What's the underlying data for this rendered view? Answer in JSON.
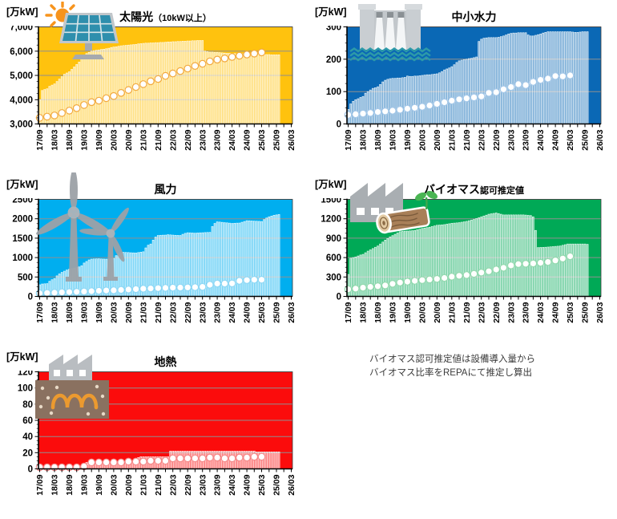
{
  "page": {
    "background": "#FFFFFF"
  },
  "style": {
    "grid_color": "#8F8F8F",
    "axis_color": "#000000",
    "bar_fill": "rgba(255,255,255,0.5)",
    "bar_stroke": "rgba(255,255,255,0.92)",
    "line_color": "rgba(255,255,255,0.85)",
    "marker_fill": "#FFFFFF"
  },
  "x_axis": {
    "labels": [
      "17/09",
      "18/03",
      "18/09",
      "19/03",
      "19/09",
      "20/03",
      "20/09",
      "21/03",
      "21/09",
      "22/03",
      "22/09",
      "23/03",
      "23/09",
      "24/03",
      "24/09",
      "25/03",
      "25/09",
      "26/03"
    ],
    "months_total": 102,
    "label_every_months": 6,
    "tick_every_months": 3
  },
  "charts": [
    {
      "id": "solar",
      "title": "太陽光",
      "title_suffix": "（10kW以上）",
      "unit": "[万kW]",
      "icon": "sun-solar-panel-icon",
      "colors": {
        "bg": "#FFC20E",
        "marker_rim": "#F2A93E"
      }
    },
    {
      "id": "hydro",
      "title": "中小水力",
      "title_suffix": "",
      "unit": "[万kW]",
      "icon": "dam-icon",
      "colors": {
        "bg": "#0A68B5",
        "marker_rim": "#A3C7E8"
      }
    },
    {
      "id": "wind",
      "title": "風力",
      "title_suffix": "",
      "unit": "[万kW]",
      "icon": "wind-turbines-icon",
      "colors": {
        "bg": "#00AEEF",
        "marker_rim": "#8FD8F5"
      }
    },
    {
      "id": "biomass",
      "title": "バイオマス",
      "title_suffix": "認可推定値",
      "unit": "[万kW]",
      "icon": "biomass-log-icon",
      "colors": {
        "bg": "#00A956",
        "marker_rim": "#93D9AE"
      }
    },
    {
      "id": "geothermal",
      "title": "地熱",
      "title_suffix": "",
      "unit": "[万kW]",
      "icon": "geothermal-icon",
      "colors": {
        "bg": "#FB0C0C",
        "marker_rim": "#F58A8A"
      }
    }
  ],
  "note": {
    "line1": "バイオマス認可推定値は設備導入量から",
    "line2": "バイオマス比率をREPAにて推定し算出"
  },
  "chart_data": [
    {
      "type": "bar+line",
      "title": "太陽光（10kW以上）",
      "ylabel": "[万kW]",
      "ylim": [
        3000,
        7000
      ],
      "yticks": [
        3000,
        4000,
        5000,
        6000,
        7000
      ],
      "ytick_labels": [
        "3,000",
        "4,000",
        "5,000",
        "6,000",
        "7,000"
      ],
      "x_start": "2017/09",
      "x_end": "2026/03",
      "bars": {
        "start": "2017/09",
        "interval_months": 1,
        "values": [
          4000,
          4380,
          4420,
          4450,
          4550,
          4600,
          4650,
          4750,
          4850,
          4950,
          5050,
          5100,
          5150,
          5250,
          5350,
          5450,
          5550,
          5700,
          5820,
          5900,
          5950,
          6000,
          6020,
          6040,
          6050,
          6070,
          6080,
          6100,
          6120,
          6150,
          6170,
          6180,
          6200,
          6220,
          6230,
          6240,
          6250,
          6260,
          6270,
          6280,
          6300,
          6310,
          6320,
          6330,
          6330,
          6340,
          6340,
          6350,
          6350,
          6360,
          6360,
          6370,
          6380,
          6380,
          6390,
          6390,
          6400,
          6400,
          6410,
          6410,
          6420,
          6420,
          6430,
          6430,
          6440,
          6440,
          6440,
          6000,
          5980,
          5960,
          5960,
          5950,
          5950,
          5940,
          5930,
          5920,
          5910,
          5910,
          5900,
          5900,
          5900,
          5900,
          5900,
          5900,
          5900,
          5910,
          5910,
          5920,
          5930,
          5940,
          5950,
          5870,
          5860,
          5860,
          5850,
          5850,
          5850,
          5850
        ]
      },
      "line": {
        "start": "2017/09",
        "interval_months": 3,
        "values": [
          3250,
          3300,
          3350,
          3450,
          3550,
          3650,
          3780,
          3900,
          3960,
          4060,
          4150,
          4280,
          4400,
          4520,
          4640,
          4760,
          4850,
          4980,
          5080,
          5180,
          5280,
          5390,
          5480,
          5580,
          5650,
          5700,
          5760,
          5810,
          5860,
          5900,
          5950
        ]
      }
    },
    {
      "type": "bar+line",
      "title": "中小水力",
      "ylabel": "[万kW]",
      "ylim": [
        0,
        300
      ],
      "yticks": [
        0,
        100,
        200,
        300
      ],
      "ytick_labels": [
        "0",
        "100",
        "200",
        "300"
      ],
      "x_start": "2017/09",
      "x_end": "2026/03",
      "bars": {
        "start": "2017/09",
        "interval_months": 1,
        "values": [
          45,
          62,
          70,
          75,
          78,
          82,
          85,
          95,
          100,
          105,
          110,
          112,
          115,
          122,
          130,
          135,
          138,
          140,
          141,
          141,
          142,
          142,
          143,
          144,
          148,
          147,
          147,
          148,
          148,
          149,
          150,
          151,
          152,
          152,
          153,
          154,
          155,
          158,
          162,
          167,
          170,
          173,
          177,
          183,
          190,
          195,
          197,
          199,
          200,
          202,
          203,
          205,
          207,
          255,
          262,
          265,
          266,
          267,
          267,
          267,
          267,
          268,
          270,
          272,
          275,
          278,
          280,
          281,
          281,
          282,
          282,
          282,
          282,
          275,
          272,
          272,
          274,
          276,
          278,
          281,
          283,
          285,
          285,
          285,
          285,
          285,
          285,
          285,
          285,
          285,
          285,
          284,
          283,
          283,
          284,
          285,
          285,
          285
        ]
      },
      "line": {
        "start": "2017/09",
        "interval_months": 3,
        "values": [
          28,
          30,
          32,
          34,
          37,
          39,
          41,
          44,
          47,
          50,
          53,
          57,
          62,
          67,
          72,
          76,
          79,
          82,
          85,
          96,
          98,
          107,
          114,
          123,
          120,
          130,
          136,
          140,
          148,
          147,
          150
        ]
      }
    },
    {
      "type": "bar+line",
      "title": "風力",
      "ylabel": "[万kW]",
      "ylim": [
        0,
        2500
      ],
      "yticks": [
        0,
        500,
        1000,
        1500,
        2000,
        2500
      ],
      "ytick_labels": [
        "0",
        "500",
        "1000",
        "1500",
        "2000",
        "2500"
      ],
      "x_start": "2017/09",
      "x_end": "2026/03",
      "bars": {
        "start": "2017/09",
        "interval_months": 1,
        "values": [
          300,
          320,
          325,
          330,
          390,
          430,
          460,
          530,
          580,
          620,
          650,
          680,
          700,
          715,
          730,
          740,
          760,
          790,
          860,
          900,
          940,
          960,
          965,
          968,
          970,
          965,
          962,
          960,
          965,
          975,
          980,
          1050,
          1100,
          1130,
          1135,
          1132,
          1130,
          1125,
          1122,
          1120,
          1130,
          1140,
          1150,
          1250,
          1320,
          1350,
          1450,
          1530,
          1570,
          1575,
          1578,
          1580,
          1590,
          1585,
          1580,
          1575,
          1572,
          1570,
          1600,
          1625,
          1640,
          1638,
          1634,
          1630,
          1635,
          1638,
          1640,
          1645,
          1648,
          1650,
          1800,
          1880,
          1920,
          1915,
          1908,
          1900,
          1895,
          1888,
          1880,
          1885,
          1888,
          1890,
          1910,
          1930,
          1950,
          1948,
          1944,
          1940,
          1937,
          1934,
          1930,
          1980,
          2020,
          2050,
          2070,
          2090,
          2100,
          2110
        ]
      },
      "line": {
        "start": "2017/09",
        "interval_months": 3,
        "values": [
          80,
          88,
          95,
          105,
          112,
          118,
          125,
          135,
          145,
          152,
          158,
          168,
          178,
          188,
          198,
          205,
          212,
          218,
          225,
          228,
          232,
          238,
          245,
          300,
          330,
          330,
          335,
          400,
          420,
          430,
          430
        ]
      }
    },
    {
      "type": "bar+line",
      "title": "バイオマス認可推定値",
      "ylabel": "[万kW]",
      "ylim": [
        0,
        1500
      ],
      "yticks": [
        0,
        300,
        600,
        900,
        1200,
        1500
      ],
      "ytick_labels": [
        "0",
        "300",
        "600",
        "900",
        "1200",
        "1500"
      ],
      "x_start": "2017/09",
      "x_end": "2026/03",
      "bars": {
        "start": "2017/09",
        "interval_months": 1,
        "values": [
          340,
          590,
          600,
          610,
          625,
          640,
          650,
          675,
          700,
          720,
          740,
          760,
          780,
          810,
          840,
          870,
          895,
          920,
          940,
          960,
          980,
          1000,
          1005,
          1008,
          1010,
          1013,
          1016,
          1020,
          1030,
          1040,
          1050,
          1057,
          1063,
          1070,
          1080,
          1090,
          1100,
          1103,
          1106,
          1110,
          1117,
          1123,
          1130,
          1133,
          1136,
          1140,
          1147,
          1153,
          1160,
          1170,
          1180,
          1190,
          1203,
          1216,
          1230,
          1243,
          1256,
          1270,
          1277,
          1283,
          1290,
          1280,
          1270,
          1260,
          1260,
          1260,
          1260,
          1260,
          1260,
          1260,
          1260,
          1260,
          1257,
          1253,
          1250,
          1230,
          1020,
          755,
          757,
          758,
          760,
          763,
          766,
          770,
          773,
          776,
          780,
          790,
          800,
          810,
          810,
          810,
          810,
          810,
          810,
          810,
          810,
          805
        ]
      },
      "line": {
        "start": "2017/09",
        "interval_months": 3,
        "values": [
          110,
          120,
          135,
          148,
          158,
          170,
          195,
          215,
          228,
          240,
          252,
          262,
          270,
          285,
          305,
          318,
          330,
          348,
          368,
          388,
          415,
          442,
          478,
          500,
          505,
          510,
          520,
          532,
          555,
          585,
          620
        ]
      }
    },
    {
      "type": "bar+line",
      "title": "地熱",
      "ylabel": "[万kW]",
      "ylim": [
        0,
        120
      ],
      "yticks": [
        0,
        20,
        40,
        60,
        80,
        100,
        120
      ],
      "ytick_labels": [
        "0",
        "20",
        "40",
        "60",
        "80",
        "100",
        "120"
      ],
      "x_start": "2017/09",
      "x_end": "2026/03",
      "bars": {
        "start": "2017/09",
        "interval_months": 1,
        "values": [
          1,
          1,
          1,
          1,
          1,
          1,
          1,
          2,
          2,
          2,
          2,
          2,
          2,
          2,
          2,
          2,
          2,
          2,
          2,
          8,
          8,
          9,
          9,
          9,
          9,
          9,
          9,
          9,
          9,
          9,
          9,
          9,
          9,
          9,
          9,
          9,
          9,
          9,
          10,
          13,
          14,
          15,
          15,
          15,
          15,
          15,
          15,
          15,
          15,
          15,
          15,
          15,
          15,
          22,
          22,
          22,
          22,
          22,
          22,
          22,
          22,
          22,
          22,
          22,
          22,
          22,
          22,
          22,
          22,
          22,
          22,
          22,
          22,
          22,
          22,
          22,
          22,
          22,
          22,
          22,
          22,
          22,
          22,
          22,
          22,
          22,
          22,
          22,
          21,
          21,
          21,
          21,
          21,
          21,
          21,
          21,
          21,
          21
        ]
      },
      "line": {
        "start": "2017/09",
        "interval_months": 3,
        "values": [
          2,
          2,
          2,
          2,
          2,
          2,
          3,
          8,
          8,
          8,
          8,
          8,
          9,
          9,
          9,
          10,
          10,
          10,
          13,
          13,
          13,
          13,
          13,
          14,
          14,
          13,
          13,
          14,
          14,
          15,
          15
        ]
      }
    }
  ]
}
